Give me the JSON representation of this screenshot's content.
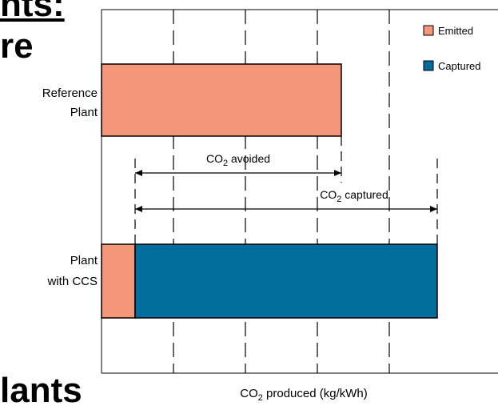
{
  "page_fragments": {
    "top_heading": "nts:",
    "mid_heading": "re",
    "bottom_heading": "lants"
  },
  "chart_data": {
    "type": "bar",
    "orientation": "horizontal",
    "stacked": true,
    "categories": [
      "Reference Plant",
      "Plant with CCS"
    ],
    "series": [
      {
        "name": "Emitted",
        "color": "#f4967a",
        "values": [
          1.0,
          0.14
        ]
      },
      {
        "name": "Captured",
        "color": "#006d9c",
        "values": [
          0,
          1.26
        ]
      }
    ],
    "xlabel": "CO₂ produced (kg/kWh)",
    "ylabel": "",
    "xlim": [
      0,
      1.5
    ],
    "xticks": [
      0.3,
      0.6,
      0.9,
      1.2
    ],
    "gridlines": "vertical, dashed",
    "legend_position": "top-right",
    "annotations": [
      {
        "label": "CO₂ avoided",
        "from": 0.14,
        "to": 1.0
      },
      {
        "label": "CO₂ captured",
        "from": 0.14,
        "to": 1.4
      }
    ]
  }
}
